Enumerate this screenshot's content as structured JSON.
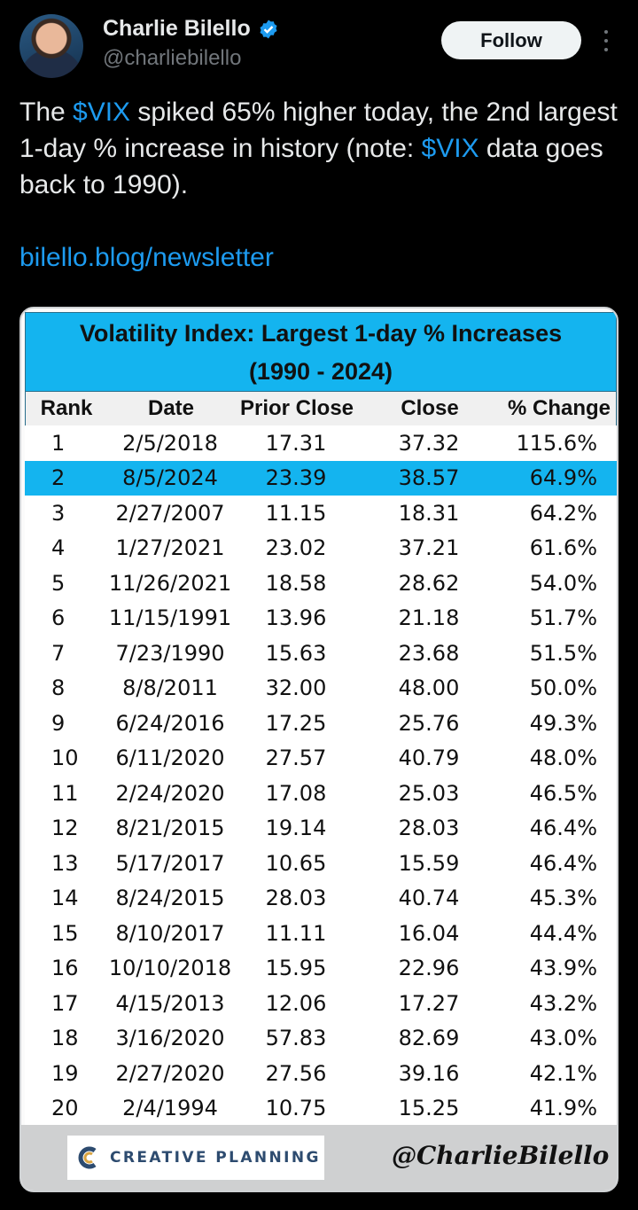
{
  "author": {
    "name": "Charlie Bilello",
    "handle": "@charliebilello",
    "follow_label": "Follow"
  },
  "tweet": {
    "part1": "The ",
    "cashtag1": "$VIX",
    "part2": " spiked 65% higher today, the 2nd largest 1-day % increase in history (note: ",
    "cashtag2": "$VIX",
    "part3": " data goes back to 1990).",
    "link": "bilello.blog/newsletter"
  },
  "table": {
    "title_line1": "Volatility Index: Largest 1-day % Increases",
    "title_line2": "(1990 - 2024)",
    "headers": [
      "Rank",
      "Date",
      "Prior Close",
      "Close",
      "% Change"
    ],
    "highlight_color": "#14b4ef",
    "rows": [
      [
        "1",
        "2/5/2018",
        "17.31",
        "37.32",
        "115.6%"
      ],
      [
        "2",
        "8/5/2024",
        "23.39",
        "38.57",
        "64.9%"
      ],
      [
        "3",
        "2/27/2007",
        "11.15",
        "18.31",
        "64.2%"
      ],
      [
        "4",
        "1/27/2021",
        "23.02",
        "37.21",
        "61.6%"
      ],
      [
        "5",
        "11/26/2021",
        "18.58",
        "28.62",
        "54.0%"
      ],
      [
        "6",
        "11/15/1991",
        "13.96",
        "21.18",
        "51.7%"
      ],
      [
        "7",
        "7/23/1990",
        "15.63",
        "23.68",
        "51.5%"
      ],
      [
        "8",
        "8/8/2011",
        "32.00",
        "48.00",
        "50.0%"
      ],
      [
        "9",
        "6/24/2016",
        "17.25",
        "25.76",
        "49.3%"
      ],
      [
        "10",
        "6/11/2020",
        "27.57",
        "40.79",
        "48.0%"
      ],
      [
        "11",
        "2/24/2020",
        "17.08",
        "25.03",
        "46.5%"
      ],
      [
        "12",
        "8/21/2015",
        "19.14",
        "28.03",
        "46.4%"
      ],
      [
        "13",
        "5/17/2017",
        "10.65",
        "15.59",
        "46.4%"
      ],
      [
        "14",
        "8/24/2015",
        "28.03",
        "40.74",
        "45.3%"
      ],
      [
        "15",
        "8/10/2017",
        "11.11",
        "16.04",
        "44.4%"
      ],
      [
        "16",
        "10/10/2018",
        "15.95",
        "22.96",
        "43.9%"
      ],
      [
        "17",
        "4/15/2013",
        "12.06",
        "17.27",
        "43.2%"
      ],
      [
        "18",
        "3/16/2020",
        "57.83",
        "82.69",
        "43.0%"
      ],
      [
        "19",
        "2/27/2020",
        "27.56",
        "39.16",
        "42.1%"
      ],
      [
        "20",
        "2/4/1994",
        "10.75",
        "15.25",
        "41.9%"
      ]
    ],
    "highlighted_rank": "2"
  },
  "footer": {
    "logo_text": "CREATIVE PLANNING",
    "handle": "@CharlieBilello"
  },
  "colors": {
    "link": "#1d9bf0",
    "header_band": "#14b4ef"
  }
}
